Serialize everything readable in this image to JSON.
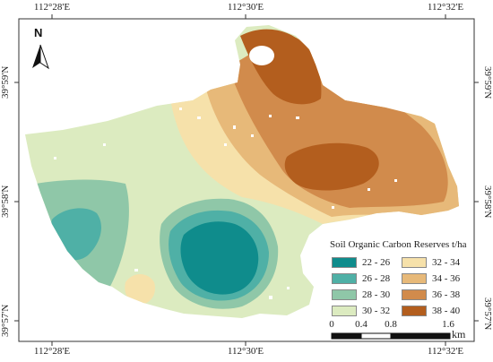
{
  "map": {
    "north_label": "N",
    "colors": {
      "class_22_26": "#0f8c8c",
      "class_26_28": "#4fb0a6",
      "class_28_30": "#8fc7a8",
      "class_30_32": "#dcebc0",
      "class_32_34": "#f6e1aa",
      "class_34_36": "#e7b979",
      "class_36_38": "#d18b4c",
      "class_38_40": "#b35e1e"
    }
  },
  "grid": {
    "top_ticks": [
      "112°28'E",
      "112°30'E",
      "112°32'E"
    ],
    "bottom_ticks": [
      "112°28'E",
      "112°30'E",
      "112°32'E"
    ],
    "left_ticks": [
      "39°59'N",
      "39°58'N",
      "39°57'N"
    ],
    "right_ticks": [
      "39°59'N",
      "39°58'N",
      "39°57'N"
    ]
  },
  "legend": {
    "title": "Soil Organic Carbon Reserves  t/ha",
    "items": [
      {
        "label": "22 - 26",
        "color": "#0f8c8c"
      },
      {
        "label": "26 - 28",
        "color": "#4fb0a6"
      },
      {
        "label": "28 - 30",
        "color": "#8fc7a8"
      },
      {
        "label": "30 - 32",
        "color": "#dcebc0"
      },
      {
        "label": "32 - 34",
        "color": "#f6e1aa"
      },
      {
        "label": "34 - 36",
        "color": "#e7b979"
      },
      {
        "label": "36 - 38",
        "color": "#d18b4c"
      },
      {
        "label": "38 - 40",
        "color": "#b35e1e"
      }
    ]
  },
  "scale_bar": {
    "labels": [
      "0",
      "0.4",
      "0.8",
      "1.6"
    ],
    "unit": "km"
  }
}
